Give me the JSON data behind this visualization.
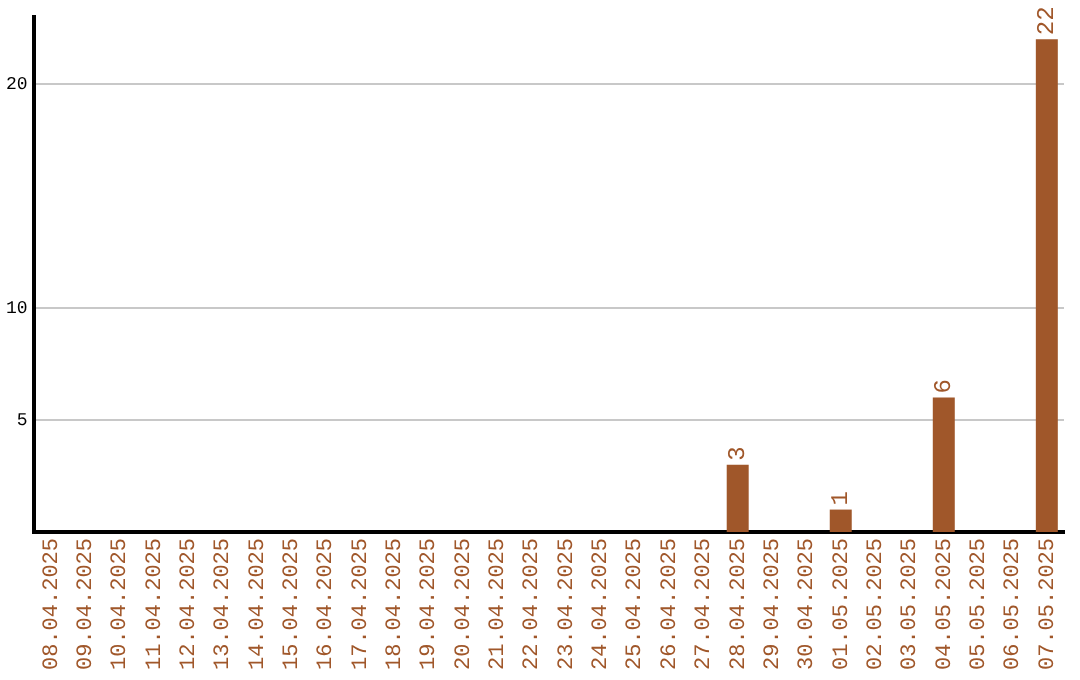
{
  "chart_data": {
    "type": "bar",
    "categories": [
      "08.04.2025",
      "09.04.2025",
      "10.04.2025",
      "11.04.2025",
      "12.04.2025",
      "13.04.2025",
      "14.04.2025",
      "15.04.2025",
      "16.04.2025",
      "17.04.2025",
      "18.04.2025",
      "19.04.2025",
      "20.04.2025",
      "21.04.2025",
      "22.04.2025",
      "23.04.2025",
      "24.04.2025",
      "25.04.2025",
      "26.04.2025",
      "27.04.2025",
      "28.04.2025",
      "29.04.2025",
      "30.04.2025",
      "01.05.2025",
      "02.05.2025",
      "03.05.2025",
      "04.05.2025",
      "05.05.2025",
      "06.05.2025",
      "07.05.2025"
    ],
    "values": [
      0,
      0,
      0,
      0,
      0,
      0,
      0,
      0,
      0,
      0,
      0,
      0,
      0,
      0,
      0,
      0,
      0,
      0,
      0,
      0,
      3,
      0,
      0,
      1,
      0,
      0,
      6,
      0,
      0,
      22
    ],
    "value_labels": [
      null,
      null,
      null,
      null,
      null,
      null,
      null,
      null,
      null,
      null,
      null,
      null,
      null,
      null,
      null,
      null,
      null,
      null,
      null,
      null,
      "3",
      null,
      null,
      "1",
      null,
      null,
      "6",
      null,
      null,
      "22"
    ],
    "color": "#a0572a",
    "ylim": [
      0,
      23
    ],
    "yticks": [
      5,
      10,
      20
    ],
    "grid": "y",
    "legend": false
  }
}
